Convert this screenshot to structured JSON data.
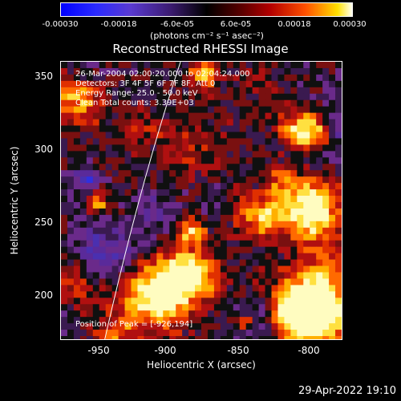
{
  "colorbar": {
    "ticks": [
      "-0.00030",
      "-0.00018",
      "-6.0e-05",
      "6.0e-05",
      "0.00018",
      "0.00030"
    ],
    "units": "(photons cm⁻² s⁻¹ asec⁻²)"
  },
  "plot": {
    "title": "Reconstructed RHESSI Image",
    "info": {
      "line1": "26-Mar-2004 02:00:20.000 to 02:04:24.000",
      "line2": "Detectors: 3F 4F 5F 6F 7F 8F, Att 0",
      "line3": "Energy Range: 25.0 - 50.0 keV",
      "line4": "Clean     Total counts: 3.39E+03"
    },
    "peak": "Position of Peak = [-926,194]",
    "xlabel": "Heliocentric X (arcsec)",
    "ylabel": "Heliocentric Y (arcsec)",
    "xticks": [
      "-950",
      "-900",
      "-850",
      "-800"
    ],
    "yticks": [
      "350",
      "300",
      "250",
      "200"
    ]
  },
  "footer": {
    "date": "29-Apr-2022 19:10"
  },
  "chart_data": {
    "type": "heatmap",
    "title": "Reconstructed RHESSI Image",
    "xlabel": "Heliocentric X (arcsec)",
    "ylabel": "Heliocentric Y (arcsec)",
    "xlim": [
      -972,
      -778
    ],
    "ylim": [
      170,
      362
    ],
    "colorbar_range": [
      -0.0003,
      0.0003
    ],
    "peak": [
      -926,
      194
    ]
  }
}
